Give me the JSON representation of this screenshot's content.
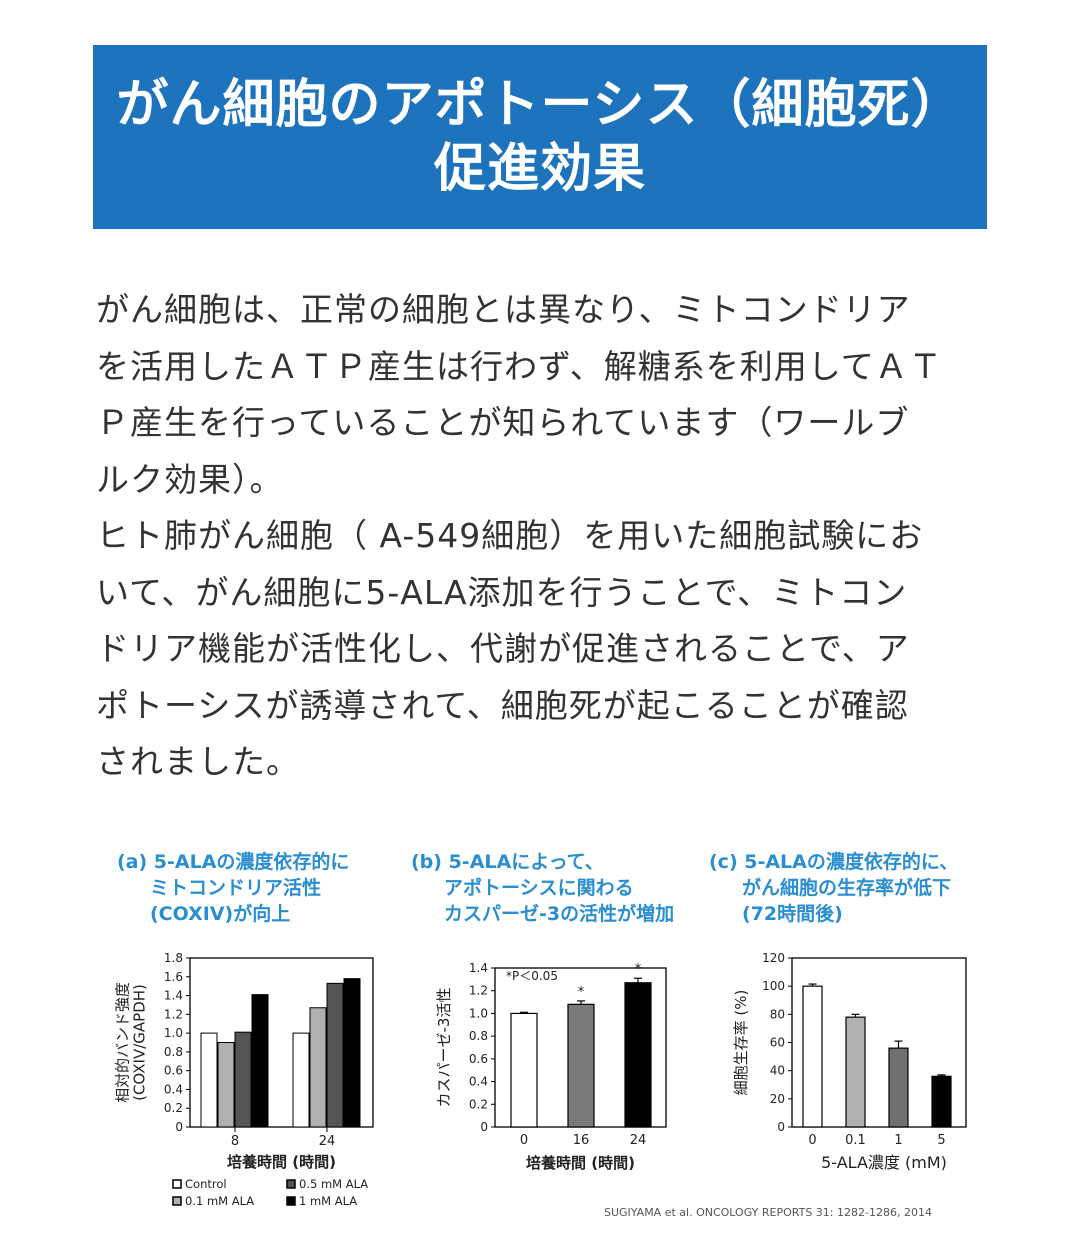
{
  "banner": {
    "line1": "がん細胞のアポトーシス（細胞死）",
    "line2": "促進効果"
  },
  "body": {
    "lines": [
      "がん細胞は、正常の細胞とは異なり、ミトコンドリア",
      "を活用したＡＴＰ産生は行わず、解糖系を利用してＡＴ",
      "Ｐ産生を行っていることが知られています（ワールブ",
      "ルク効果）。",
      "ヒト肺がん細胞（ A-549細胞）を用いた細胞試験にお",
      "いて、がん細胞に5-ALA添加を行うことで、ミトコン",
      "ドリア機能が活性化し、代謝が促進されることで、ア",
      "ポトーシスが誘導されて、細胞死が起こることが確認",
      "されました。"
    ]
  },
  "colors": {
    "banner_bg": "#1e73bd",
    "caption": "#2b8ed0",
    "control": "#ffffff",
    "ala_01": "#b0b0b0",
    "ala_05": "#555555",
    "ala_1": "#000000"
  },
  "chart_data": [
    {
      "id": "a",
      "type": "bar",
      "caption": [
        "(a) 5-ALAの濃度依存的に",
        "ミトコンドリア活性",
        "(COXIV)が向上"
      ],
      "xlabel": "培養時間 (時間)",
      "ylabel": [
        "相対的バンド強度",
        "(COXIV/GAPDH)"
      ],
      "categories": [
        "8",
        "24"
      ],
      "ylim": [
        0,
        1.8
      ],
      "yticks": [
        0,
        0.2,
        0.4,
        0.6,
        0.8,
        1.0,
        1.2,
        1.4,
        1.6,
        1.8
      ],
      "series": [
        {
          "name": "Control",
          "color": "#ffffff",
          "values": [
            1.0,
            1.0
          ]
        },
        {
          "name": "0.1 mM ALA",
          "color": "#b0b0b0",
          "values": [
            0.9,
            1.27
          ]
        },
        {
          "name": "0.5 mM ALA",
          "color": "#555555",
          "values": [
            1.01,
            1.53
          ]
        },
        {
          "name": "1 mM ALA",
          "color": "#000000",
          "values": [
            1.41,
            1.58
          ]
        }
      ],
      "legend_position": "bottom"
    },
    {
      "id": "b",
      "type": "bar",
      "caption": [
        "(b) 5-ALAによって、",
        "アポトーシスに関わる",
        "カスパーゼ-3の活性が増加"
      ],
      "xlabel": "培養時間 (時間)",
      "ylabel": [
        "カスパーゼ-3活性"
      ],
      "annotation": "*P＜0.05",
      "categories": [
        "0",
        "16",
        "24"
      ],
      "ylim": [
        0,
        1.4
      ],
      "yticks": [
        0,
        0.2,
        0.4,
        0.6,
        0.8,
        1.0,
        1.2,
        1.4
      ],
      "values": [
        1.0,
        1.08,
        1.27
      ],
      "errors": [
        0.01,
        0.03,
        0.04
      ],
      "colors": [
        "#ffffff",
        "#7a7a7a",
        "#000000"
      ],
      "significance": [
        "",
        "*",
        "*"
      ]
    },
    {
      "id": "c",
      "type": "bar",
      "caption": [
        "(c) 5-ALAの濃度依存的に、",
        "がん細胞の生存率が低下",
        "(72時間後)"
      ],
      "xlabel": "5-ALA濃度 (mM)",
      "ylabel": [
        "細胞生存率 (%)"
      ],
      "categories": [
        "0",
        "0.1",
        "1",
        "5"
      ],
      "ylim": [
        0,
        120
      ],
      "yticks": [
        0,
        20,
        40,
        60,
        80,
        100,
        120
      ],
      "values": [
        100,
        78,
        56,
        36
      ],
      "errors": [
        1.5,
        2,
        5,
        1
      ],
      "colors": [
        "#ffffff",
        "#b0b0b0",
        "#707070",
        "#000000"
      ]
    }
  ],
  "source": "SUGIYAMA et al. ONCOLOGY REPORTS 31: 1282-1286, 2014"
}
